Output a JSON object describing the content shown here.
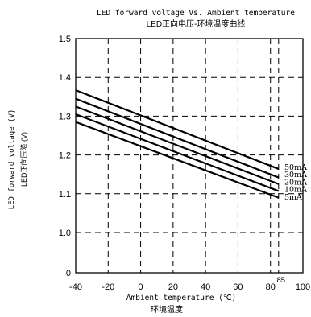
{
  "chart_data": {
    "type": "line",
    "title": "LED forward voltage Vs. Ambient temperature",
    "subtitle": "LED正向电压-环境温度曲线",
    "xlabel": "Ambient temperature (℃)",
    "xlabel_cn": "环境温度",
    "ylabel": "LED forward voltage (V)",
    "ylabel_cn": "LED正向压降 (V)",
    "xlim": [
      -40,
      100
    ],
    "ylim": [
      0.0,
      1.5
    ],
    "x_ticks": [
      -40,
      -20,
      0,
      20,
      40,
      60,
      80,
      100
    ],
    "x_tick_labels": [
      "-40",
      "-20",
      "0",
      "20",
      "40",
      "60",
      "80",
      "100"
    ],
    "y_ticks": [
      0.0,
      1.0,
      1.1,
      1.2,
      1.3,
      1.4,
      1.5
    ],
    "y_tick_labels": [
      "0",
      "1.0",
      "1.1",
      "1.2",
      "1.3",
      "1.4",
      "1.5"
    ],
    "extra_x_marker": {
      "x": 85,
      "label": "85"
    },
    "grid": true,
    "series": [
      {
        "name": "50mA",
        "x": [
          -40,
          85
        ],
        "y": [
          1.367,
          1.164
        ]
      },
      {
        "name": "30mA",
        "x": [
          -40,
          85
        ],
        "y": [
          1.345,
          1.142
        ]
      },
      {
        "name": "20mA",
        "x": [
          -40,
          85
        ],
        "y": [
          1.325,
          1.125
        ]
      },
      {
        "name": "10mA",
        "x": [
          -40,
          85
        ],
        "y": [
          1.305,
          1.107
        ]
      },
      {
        "name": "5mA",
        "x": [
          -40,
          85
        ],
        "y": [
          1.285,
          1.09
        ]
      }
    ],
    "colors": {
      "line": "#000000",
      "grid": "#000000",
      "background": "#ffffff"
    }
  }
}
